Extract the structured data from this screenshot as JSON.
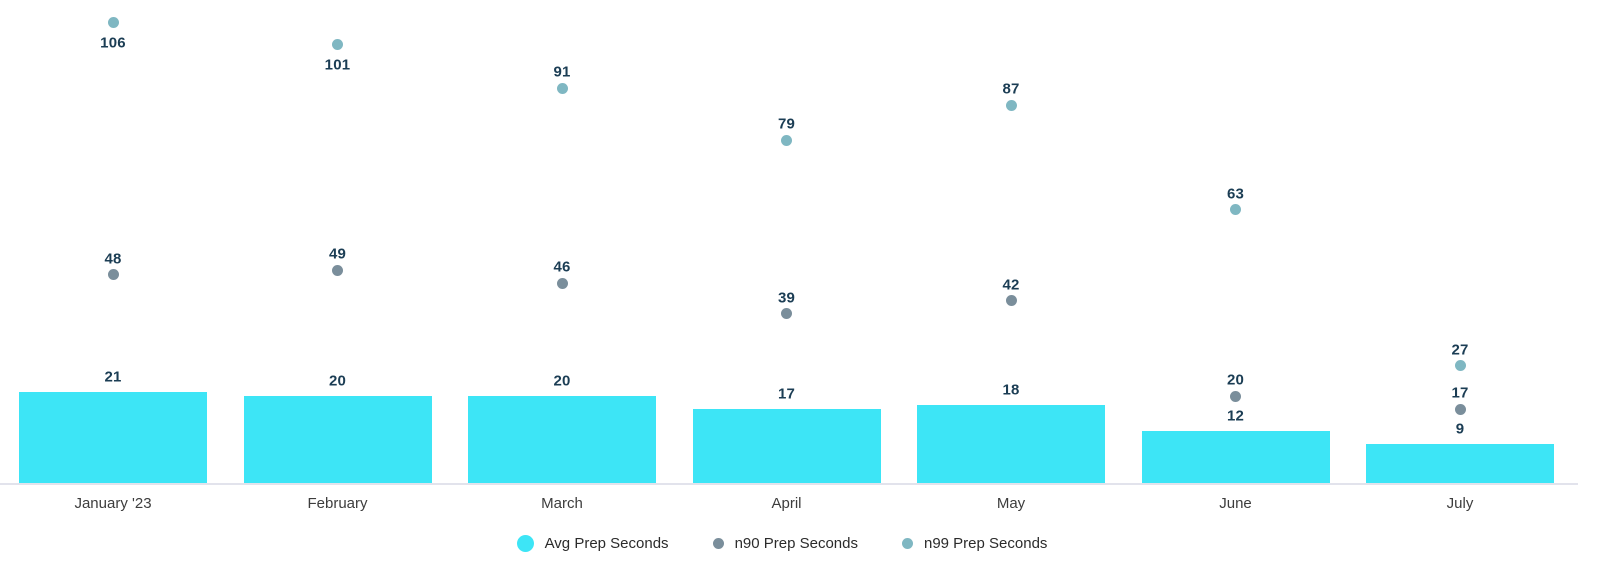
{
  "chart_data": {
    "type": "bar",
    "title": "",
    "xlabel": "",
    "ylabel": "",
    "ylim": [
      0,
      112
    ],
    "grid": false,
    "legend_position": "bottom-center",
    "background_color": "#ffffff",
    "axis_line_color": "#e2e3ec",
    "value_label_color": "#1b3d54",
    "category_label_color": "#3d3d3d",
    "categories": [
      "January '23",
      "February",
      "March",
      "April",
      "May",
      "June",
      "July"
    ],
    "series": [
      {
        "name": "Avg Prep Seconds",
        "mark": "bar",
        "color": "#3de5f6",
        "values": [
          21,
          20,
          20,
          17,
          18,
          12,
          9
        ]
      },
      {
        "name": "n90 Prep Seconds",
        "mark": "point",
        "color": "#7a8e9b",
        "values": [
          48,
          49,
          46,
          39,
          42,
          20,
          17
        ]
      },
      {
        "name": "n99 Prep Seconds",
        "mark": "point",
        "color": "#7fb7c2",
        "values": [
          106,
          101,
          91,
          79,
          87,
          63,
          27
        ]
      }
    ]
  },
  "legend": {
    "items": [
      {
        "label": "Avg Prep Seconds",
        "color": "#3de5f6",
        "size": "big"
      },
      {
        "label": "n90 Prep Seconds",
        "color": "#7a8e9b",
        "size": "small"
      },
      {
        "label": "n99 Prep Seconds",
        "color": "#7fb7c2",
        "size": "small"
      }
    ]
  }
}
